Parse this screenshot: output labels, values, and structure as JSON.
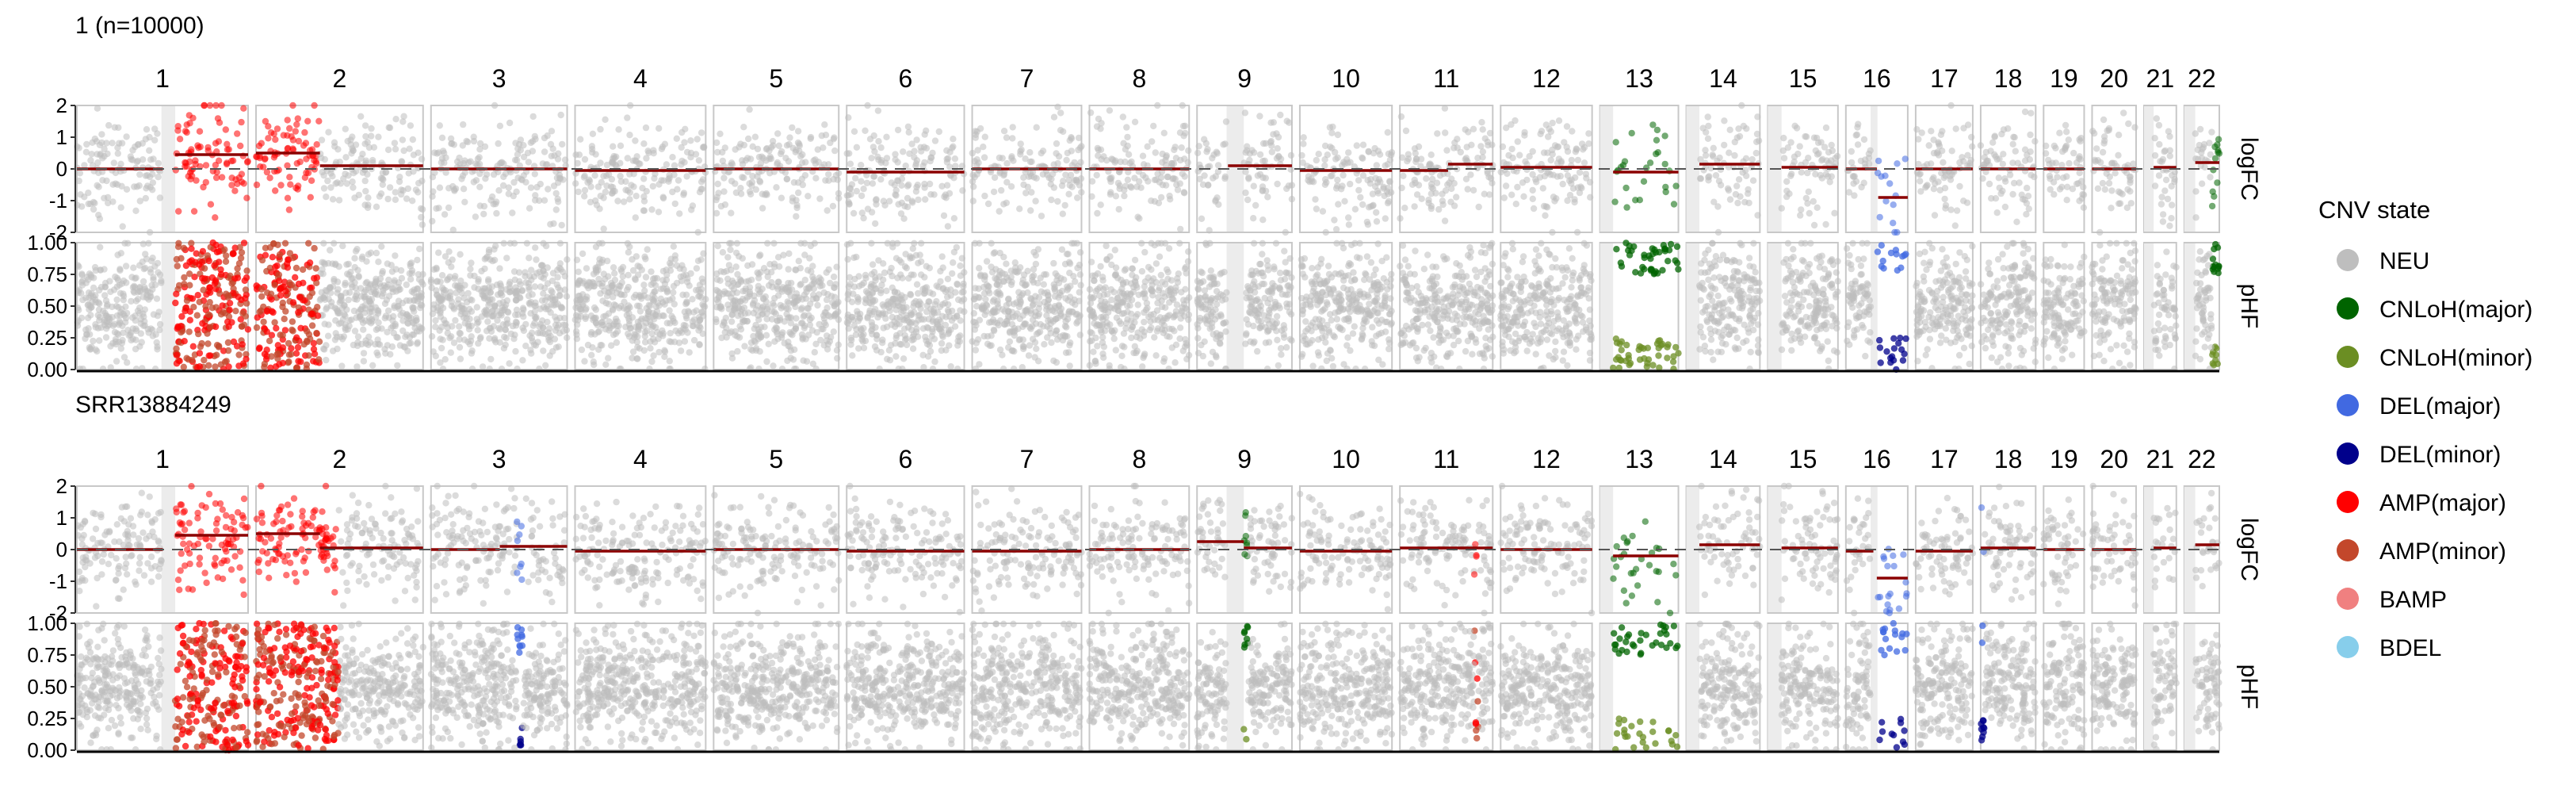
{
  "chart_data": {
    "type": "scatter",
    "description_hidden": false,
    "chromosomes": [
      "1",
      "2",
      "3",
      "4",
      "5",
      "6",
      "7",
      "8",
      "9",
      "10",
      "11",
      "12",
      "13",
      "14",
      "15",
      "16",
      "17",
      "18",
      "19",
      "20",
      "21",
      "22"
    ],
    "chromosome_sizes_mb": [
      249,
      243,
      198,
      190,
      182,
      171,
      159,
      145,
      138,
      134,
      135,
      133,
      114,
      107,
      102,
      90,
      83,
      80,
      59,
      64,
      47,
      51
    ],
    "tracks": [
      {
        "name": "logFC",
        "ylim": [
          -2,
          2
        ],
        "ticks": [
          -2,
          -1,
          0,
          1,
          2
        ],
        "tick_labels": [
          "-2",
          "-1",
          "0",
          "1",
          "2"
        ]
      },
      {
        "name": "pHF",
        "ylim": [
          0,
          1
        ],
        "ticks": [
          0,
          0.25,
          0.5,
          0.75,
          1
        ],
        "tick_labels": [
          "0.00",
          "0.25",
          "0.50",
          "0.75",
          "1.00"
        ]
      }
    ],
    "legend": {
      "title": "CNV state",
      "placement": "right",
      "entries": [
        {
          "state": "NEU",
          "color": "#bebebe"
        },
        {
          "state": "CNLoH(major)",
          "color": "#006400"
        },
        {
          "state": "CNLoH(minor)",
          "color": "#6b8e23"
        },
        {
          "state": "DEL(major)",
          "color": "#4169e1"
        },
        {
          "state": "DEL(minor)",
          "color": "#00008b"
        },
        {
          "state": "AMP(major)",
          "color": "#ff0000"
        },
        {
          "state": "AMP(minor)",
          "color": "#c3472b"
        },
        {
          "state": "BAMP",
          "color": "#f08080"
        },
        {
          "state": "BDEL",
          "color": "#87ceeb"
        }
      ]
    },
    "panels": [
      {
        "title": "1 (n=10000)",
        "segments": [
          {
            "chrom": "1",
            "start_mb": 0,
            "end_mb": 125,
            "logFC": 0
          },
          {
            "chrom": "1",
            "start_mb": 143,
            "end_mb": 249,
            "logFC": 0.45
          },
          {
            "chrom": "2",
            "start_mb": 0,
            "end_mb": 93,
            "logFC": 0.5
          },
          {
            "chrom": "2",
            "start_mb": 93,
            "end_mb": 243,
            "logFC": 0.1
          },
          {
            "chrom": "3",
            "start_mb": 0,
            "end_mb": 198,
            "logFC": 0
          },
          {
            "chrom": "4",
            "start_mb": 0,
            "end_mb": 190,
            "logFC": -0.05
          },
          {
            "chrom": "5",
            "start_mb": 0,
            "end_mb": 182,
            "logFC": 0
          },
          {
            "chrom": "6",
            "start_mb": 0,
            "end_mb": 171,
            "logFC": -0.1
          },
          {
            "chrom": "7",
            "start_mb": 0,
            "end_mb": 159,
            "logFC": 0
          },
          {
            "chrom": "8",
            "start_mb": 0,
            "end_mb": 145,
            "logFC": 0
          },
          {
            "chrom": "9",
            "start_mb": 45,
            "end_mb": 138,
            "logFC": 0.1
          },
          {
            "chrom": "10",
            "start_mb": 0,
            "end_mb": 134,
            "logFC": -0.05
          },
          {
            "chrom": "11",
            "start_mb": 0,
            "end_mb": 70,
            "logFC": -0.05
          },
          {
            "chrom": "11",
            "start_mb": 70,
            "end_mb": 135,
            "logFC": 0.15
          },
          {
            "chrom": "12",
            "start_mb": 0,
            "end_mb": 133,
            "logFC": 0.05
          },
          {
            "chrom": "13",
            "start_mb": 19,
            "end_mb": 114,
            "logFC": -0.1
          },
          {
            "chrom": "14",
            "start_mb": 19,
            "end_mb": 107,
            "logFC": 0.15
          },
          {
            "chrom": "15",
            "start_mb": 20,
            "end_mb": 102,
            "logFC": 0.05
          },
          {
            "chrom": "16",
            "start_mb": 0,
            "end_mb": 45,
            "logFC": 0
          },
          {
            "chrom": "16",
            "start_mb": 47,
            "end_mb": 90,
            "logFC": -0.9
          },
          {
            "chrom": "17",
            "start_mb": 0,
            "end_mb": 83,
            "logFC": 0
          },
          {
            "chrom": "18",
            "start_mb": 0,
            "end_mb": 80,
            "logFC": 0
          },
          {
            "chrom": "19",
            "start_mb": 0,
            "end_mb": 59,
            "logFC": 0
          },
          {
            "chrom": "20",
            "start_mb": 0,
            "end_mb": 64,
            "logFC": 0
          },
          {
            "chrom": "21",
            "start_mb": 14,
            "end_mb": 47,
            "logFC": 0.05
          },
          {
            "chrom": "22",
            "start_mb": 16,
            "end_mb": 51,
            "logFC": 0.2
          }
        ],
        "cnv_regions": [
          {
            "chrom": "1",
            "start_mb": 143,
            "end_mb": 249,
            "state": "AMP(major)",
            "minor_state": "AMP(minor)"
          },
          {
            "chrom": "2",
            "start_mb": 0,
            "end_mb": 93,
            "state": "AMP(major)",
            "minor_state": "AMP(minor)"
          },
          {
            "chrom": "13",
            "start_mb": 19,
            "end_mb": 114,
            "state": "CNLoH(major)",
            "minor_state": "CNLoH(minor)",
            "sparse": true
          },
          {
            "chrom": "16",
            "start_mb": 45,
            "end_mb": 90,
            "state": "DEL(major)",
            "minor_state": "DEL(minor)",
            "sparse": true
          },
          {
            "chrom": "22",
            "start_mb": 40,
            "end_mb": 51,
            "state": "CNLoH(major)",
            "minor_state": "CNLoH(minor)",
            "narrow": true
          }
        ]
      },
      {
        "title": "SRR13884249",
        "segments": [
          {
            "chrom": "1",
            "start_mb": 0,
            "end_mb": 125,
            "logFC": 0
          },
          {
            "chrom": "1",
            "start_mb": 143,
            "end_mb": 249,
            "logFC": 0.45
          },
          {
            "chrom": "2",
            "start_mb": 0,
            "end_mb": 93,
            "logFC": 0.5
          },
          {
            "chrom": "2",
            "start_mb": 93,
            "end_mb": 243,
            "logFC": 0.05
          },
          {
            "chrom": "3",
            "start_mb": 0,
            "end_mb": 100,
            "logFC": 0
          },
          {
            "chrom": "3",
            "start_mb": 100,
            "end_mb": 198,
            "logFC": 0.1
          },
          {
            "chrom": "4",
            "start_mb": 0,
            "end_mb": 190,
            "logFC": -0.05
          },
          {
            "chrom": "5",
            "start_mb": 0,
            "end_mb": 182,
            "logFC": 0
          },
          {
            "chrom": "6",
            "start_mb": 0,
            "end_mb": 171,
            "logFC": -0.05
          },
          {
            "chrom": "7",
            "start_mb": 0,
            "end_mb": 159,
            "logFC": -0.05
          },
          {
            "chrom": "8",
            "start_mb": 0,
            "end_mb": 145,
            "logFC": 0
          },
          {
            "chrom": "9",
            "start_mb": 0,
            "end_mb": 68,
            "logFC": 0.25
          },
          {
            "chrom": "9",
            "start_mb": 68,
            "end_mb": 138,
            "logFC": 0.05
          },
          {
            "chrom": "10",
            "start_mb": 0,
            "end_mb": 134,
            "logFC": -0.05
          },
          {
            "chrom": "11",
            "start_mb": 0,
            "end_mb": 135,
            "logFC": 0.05
          },
          {
            "chrom": "12",
            "start_mb": 0,
            "end_mb": 133,
            "logFC": 0
          },
          {
            "chrom": "13",
            "start_mb": 19,
            "end_mb": 114,
            "logFC": -0.2
          },
          {
            "chrom": "14",
            "start_mb": 19,
            "end_mb": 107,
            "logFC": 0.15
          },
          {
            "chrom": "15",
            "start_mb": 20,
            "end_mb": 102,
            "logFC": 0.05
          },
          {
            "chrom": "16",
            "start_mb": 0,
            "end_mb": 40,
            "logFC": -0.05
          },
          {
            "chrom": "16",
            "start_mb": 45,
            "end_mb": 90,
            "logFC": -0.9
          },
          {
            "chrom": "17",
            "start_mb": 0,
            "end_mb": 83,
            "logFC": -0.05
          },
          {
            "chrom": "18",
            "start_mb": 0,
            "end_mb": 80,
            "logFC": 0.05
          },
          {
            "chrom": "19",
            "start_mb": 0,
            "end_mb": 59,
            "logFC": 0
          },
          {
            "chrom": "20",
            "start_mb": 0,
            "end_mb": 64,
            "logFC": 0
          },
          {
            "chrom": "21",
            "start_mb": 14,
            "end_mb": 47,
            "logFC": 0.05
          },
          {
            "chrom": "22",
            "start_mb": 16,
            "end_mb": 51,
            "logFC": 0.15
          }
        ],
        "cnv_regions": [
          {
            "chrom": "1",
            "start_mb": 143,
            "end_mb": 249,
            "state": "AMP(major)",
            "minor_state": "AMP(minor)"
          },
          {
            "chrom": "2",
            "start_mb": 0,
            "end_mb": 120,
            "state": "AMP(major)",
            "minor_state": "AMP(minor)"
          },
          {
            "chrom": "3",
            "start_mb": 125,
            "end_mb": 133,
            "state": "DEL(major)",
            "minor_state": "DEL(minor)",
            "narrow": true
          },
          {
            "chrom": "9",
            "start_mb": 66,
            "end_mb": 74,
            "state": "CNLoH(major)",
            "minor_state": "CNLoH(minor)",
            "narrow": true
          },
          {
            "chrom": "11",
            "start_mb": 108,
            "end_mb": 114,
            "state": "AMP(major)",
            "minor_state": "AMP(minor)",
            "narrow": true
          },
          {
            "chrom": "13",
            "start_mb": 19,
            "end_mb": 114,
            "state": "CNLoH(major)",
            "minor_state": "CNLoH(minor)",
            "sparse": true
          },
          {
            "chrom": "16",
            "start_mb": 45,
            "end_mb": 90,
            "state": "DEL(major)",
            "minor_state": "DEL(minor)",
            "sparse": true
          },
          {
            "chrom": "18",
            "start_mb": 0,
            "end_mb": 6,
            "state": "DEL(major)",
            "minor_state": "DEL(minor)",
            "narrow": true
          }
        ]
      }
    ]
  }
}
